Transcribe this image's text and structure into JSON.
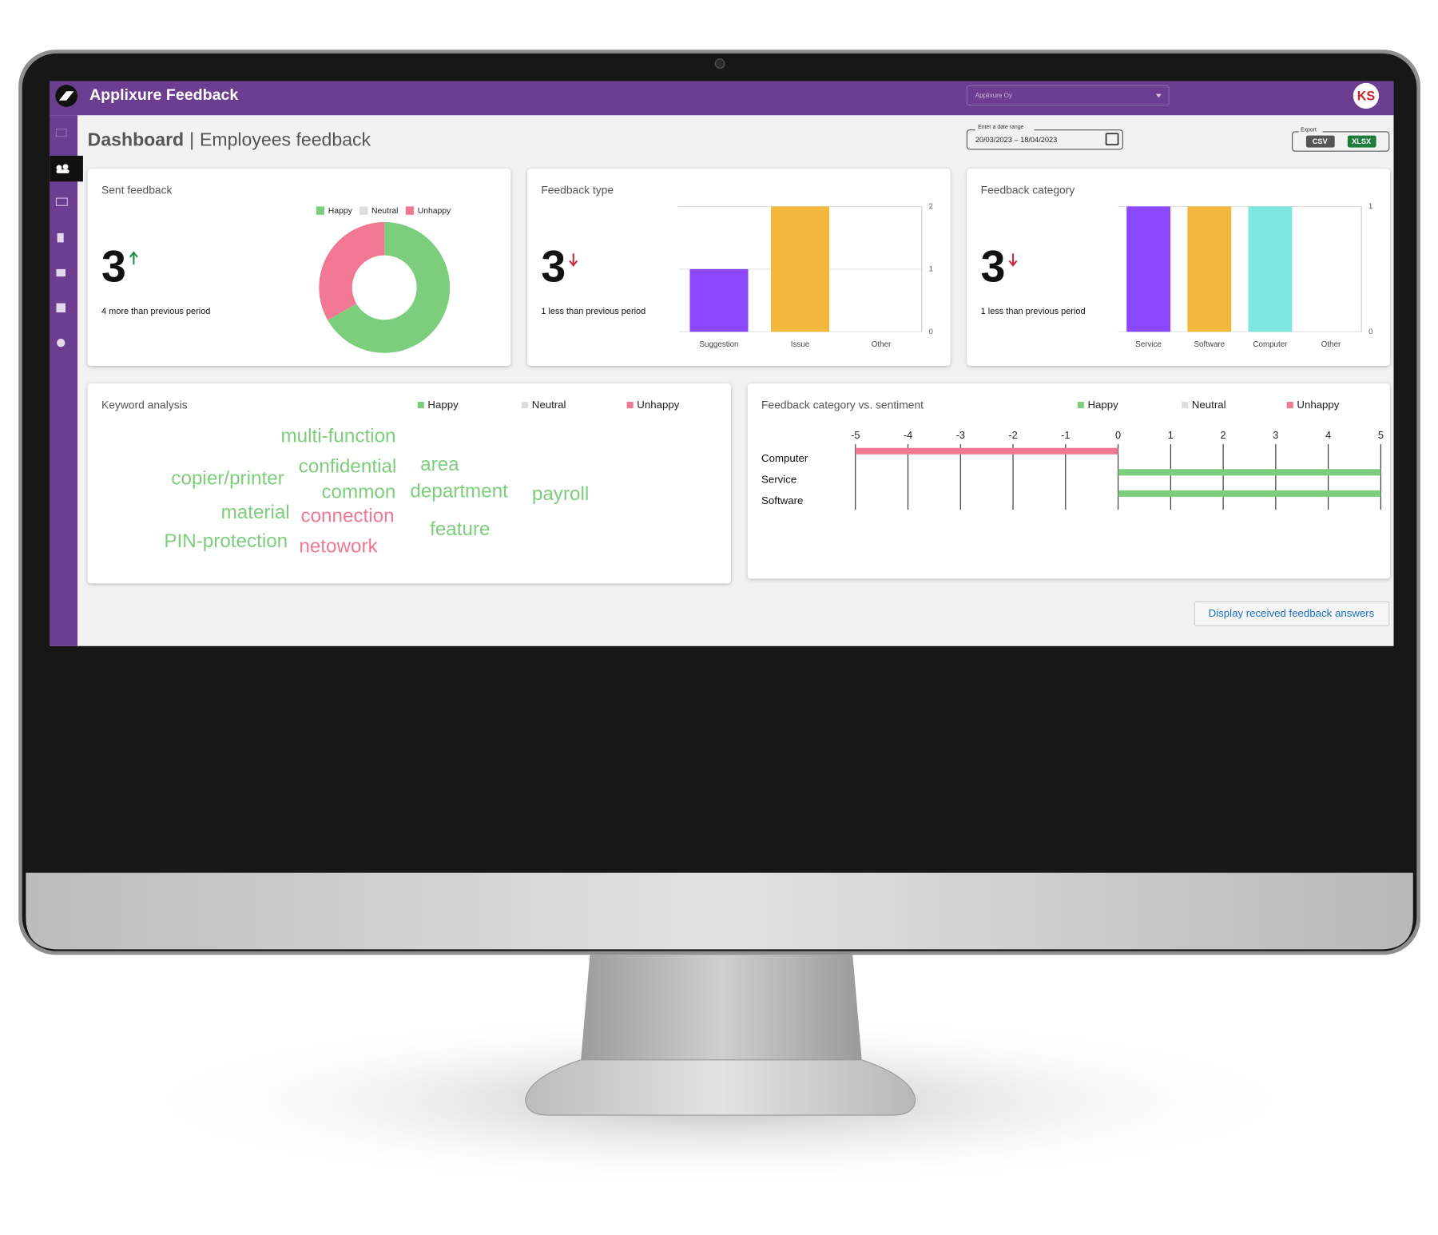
{
  "app": {
    "title": "Applixure Feedback",
    "organization": "Applixure Oy",
    "user_initials": "KS"
  },
  "header": {
    "title": "Dashboard",
    "separator": "|",
    "subtitle": "Employees feedback",
    "date_label": "Enter a date range",
    "date_range": "20/03/2023 – 18/04/2023",
    "export_label": "Export",
    "export_buttons": [
      "CSV",
      "XLSX"
    ]
  },
  "chart_data": [
    {
      "type": "pie",
      "title": "Sent feedback",
      "kpi": 3,
      "kpi_trend": "up",
      "kpi_note": "4 more than previous period",
      "donut": true,
      "categories": [
        "Happy",
        "Neutral",
        "Unhappy"
      ],
      "values": [
        2,
        0,
        1
      ],
      "colors": [
        "#7ccd7c",
        "#dcdcdc",
        "#f07893"
      ]
    },
    {
      "type": "bar",
      "title": "Feedback type",
      "kpi": 3,
      "kpi_trend": "down",
      "kpi_note": "1 less than previous period",
      "categories": [
        "Suggestion",
        "Issue",
        "Other"
      ],
      "values": [
        1,
        2,
        0
      ],
      "colors": [
        "#8c48ff",
        "#f2b83c",
        "#7ee8e0"
      ],
      "ylim": [
        0,
        2
      ],
      "yticks": [
        0,
        1,
        2
      ],
      "grid": true,
      "y_axis_side": "right"
    },
    {
      "type": "bar",
      "title": "Feedback category",
      "kpi": 3,
      "kpi_trend": "down",
      "kpi_note": "1 less than previous period",
      "categories": [
        "Service",
        "Software",
        "Computer",
        "Other"
      ],
      "values": [
        1,
        1,
        1,
        0
      ],
      "colors": [
        "#8c48ff",
        "#f2b83c",
        "#7ee8e0",
        "#aaaaaa"
      ],
      "ylim": [
        0,
        1
      ],
      "yticks": [
        0,
        1
      ],
      "grid": true,
      "y_axis_side": "right"
    },
    {
      "type": "wordcloud",
      "title": "Keyword analysis",
      "series": [
        {
          "name": "Happy",
          "color": "#7ccd7c",
          "words": [
            "multi-function",
            "confidential",
            "area",
            "copier/printer",
            "common",
            "department",
            "payroll",
            "material",
            "feature",
            "PIN-protection"
          ]
        },
        {
          "name": "Neutral",
          "color": "#dcdcdc",
          "words": []
        },
        {
          "name": "Unhappy",
          "color": "#f07893",
          "words": [
            "connection",
            "netowork"
          ]
        }
      ]
    },
    {
      "type": "hbar",
      "title": "Feedback category vs. sentiment",
      "categories": [
        "Computer",
        "Service",
        "Software"
      ],
      "series": [
        {
          "name": "Happy",
          "color": "#7ccd7c",
          "values": [
            0,
            5,
            5
          ]
        },
        {
          "name": "Neutral",
          "color": "#dcdcdc",
          "values": [
            0,
            0,
            0
          ]
        },
        {
          "name": "Unhappy",
          "color": "#f07893",
          "values": [
            -5,
            0,
            0
          ]
        }
      ],
      "xlim": [
        -5,
        5
      ],
      "xticks": [
        -5,
        -4,
        -3,
        -2,
        -1,
        0,
        1,
        2,
        3,
        4,
        5
      ],
      "grid": true,
      "x_axis_position": "top"
    }
  ],
  "footer": {
    "button": "Display received feedback answers"
  }
}
